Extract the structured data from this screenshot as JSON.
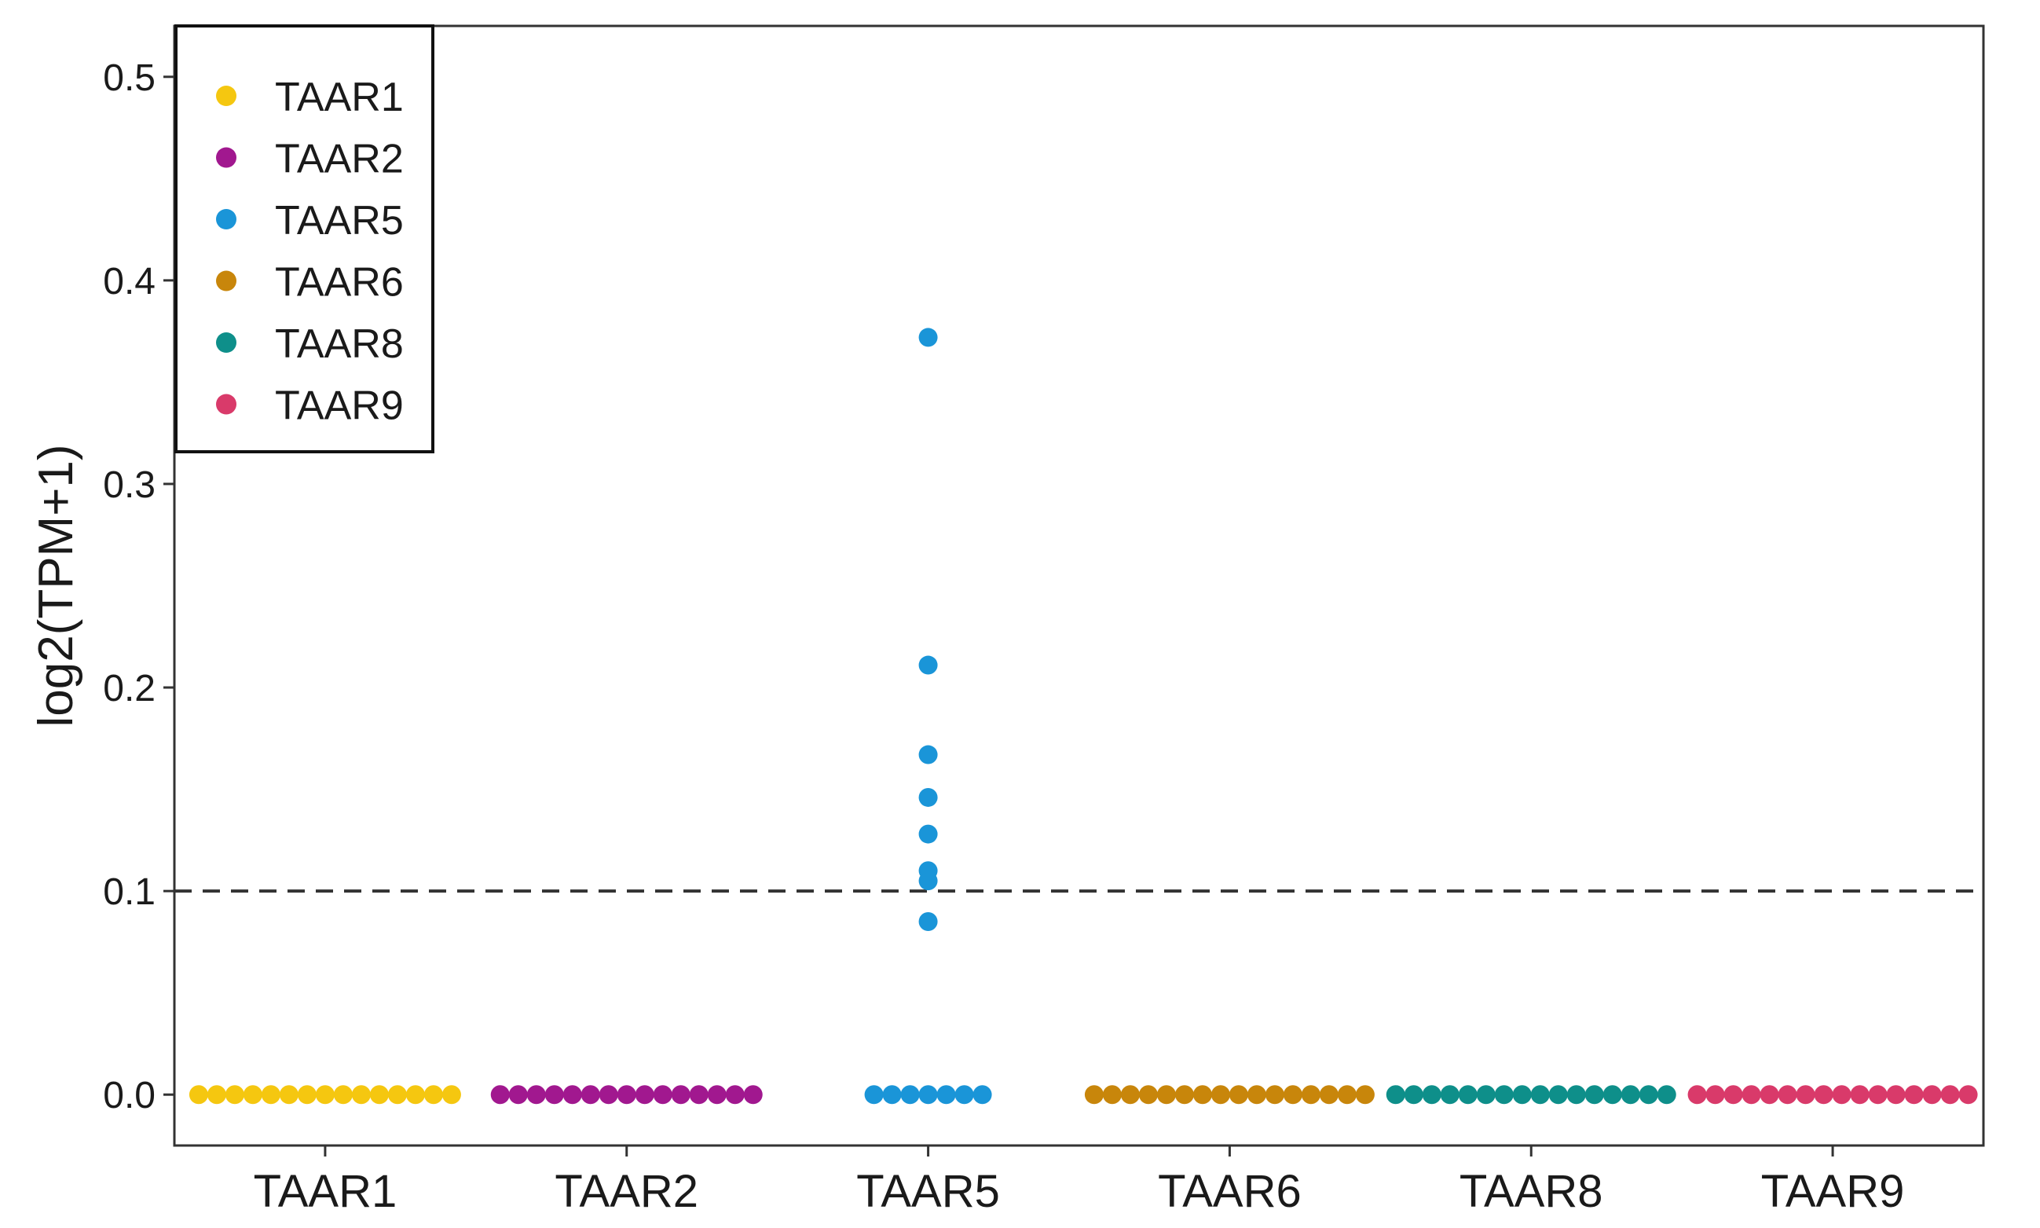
{
  "chart_data": {
    "type": "scatter",
    "title": "",
    "xlabel": "",
    "ylabel": "log2(TPM+1)",
    "categories": [
      "TAAR1",
      "TAAR2",
      "TAAR5",
      "TAAR6",
      "TAAR8",
      "TAAR9"
    ],
    "ylim": [
      -0.025,
      0.525
    ],
    "yticks": [
      "0.0",
      "0.1",
      "0.2",
      "0.3",
      "0.4",
      "0.5"
    ],
    "ytick_values": [
      0.0,
      0.1,
      0.2,
      0.3,
      0.4,
      0.5
    ],
    "grid": false,
    "legend_position": "top-left",
    "reference_line": {
      "y": 0.1,
      "style": "dashed"
    },
    "series": [
      {
        "name": "TAAR1",
        "color": "#F5C710",
        "values": [
          0,
          0,
          0,
          0,
          0,
          0,
          0,
          0,
          0,
          0,
          0,
          0,
          0,
          0,
          0
        ]
      },
      {
        "name": "TAAR2",
        "color": "#A1188F",
        "values": [
          0,
          0,
          0,
          0,
          0,
          0,
          0,
          0,
          0,
          0,
          0,
          0,
          0,
          0,
          0
        ]
      },
      {
        "name": "TAAR5",
        "color": "#1A95D8",
        "values": [
          0,
          0,
          0,
          0,
          0,
          0,
          0,
          0.085,
          0.105,
          0.11,
          0.128,
          0.146,
          0.167,
          0.211,
          0.372
        ]
      },
      {
        "name": "TAAR6",
        "color": "#C8860B",
        "values": [
          0,
          0,
          0,
          0,
          0,
          0,
          0,
          0,
          0,
          0,
          0,
          0,
          0,
          0,
          0,
          0
        ]
      },
      {
        "name": "TAAR8",
        "color": "#0E8F8A",
        "values": [
          0,
          0,
          0,
          0,
          0,
          0,
          0,
          0,
          0,
          0,
          0,
          0,
          0,
          0,
          0,
          0
        ]
      },
      {
        "name": "TAAR9",
        "color": "#D93A6A",
        "values": [
          0,
          0,
          0,
          0,
          0,
          0,
          0,
          0,
          0,
          0,
          0,
          0,
          0,
          0,
          0,
          0
        ]
      }
    ]
  }
}
